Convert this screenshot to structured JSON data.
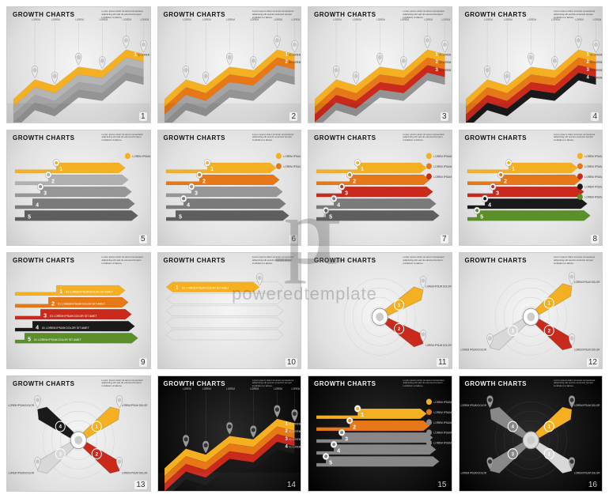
{
  "common": {
    "title": "GROWTH CHARTS",
    "lorem_block": "Lorem ipsum dolor sit amet consectetur adipiscing elit sed do eiusmod tempor incididunt ut labore.",
    "layer_text": "01 LOREM IPSUM DOLOR SIT AMET",
    "bullet_text": "LOREM IPSUM DOLOR"
  },
  "colors": {
    "yellow": "#f5b021",
    "orange": "#e77817",
    "red": "#c92a1c",
    "black_layer": "#1a1a1a",
    "green": "#5a8f29",
    "gray1": "#b0b0b0",
    "gray2": "#969696",
    "gray3": "#7a7a7a",
    "gray4": "#5e5e5e",
    "silver_light": "#d8d8d8",
    "silver_dark": "#888888"
  },
  "watermark": {
    "logo_text": "pt",
    "brand_text": "poweredtemplate"
  },
  "slides": [
    {
      "n": 1,
      "bg": "light",
      "type": "area",
      "layers": [
        "yellow"
      ],
      "markers": 6
    },
    {
      "n": 2,
      "bg": "light",
      "type": "area",
      "layers": [
        "yellow",
        "orange"
      ],
      "markers": 6
    },
    {
      "n": 3,
      "bg": "light",
      "type": "area",
      "layers": [
        "yellow",
        "orange",
        "red"
      ],
      "markers": 6
    },
    {
      "n": 4,
      "bg": "light",
      "type": "area",
      "layers": [
        "yellow",
        "orange",
        "red",
        "black_layer"
      ],
      "markers": 6
    },
    {
      "n": 5,
      "bg": "light",
      "type": "arrows",
      "rows": [
        "yellow",
        "gray1",
        "gray2",
        "gray3",
        "gray4"
      ],
      "bullets": 1
    },
    {
      "n": 6,
      "bg": "light",
      "type": "arrows",
      "rows": [
        "yellow",
        "orange",
        "gray2",
        "gray3",
        "gray4"
      ],
      "bullets": 2
    },
    {
      "n": 7,
      "bg": "light",
      "type": "arrows",
      "rows": [
        "yellow",
        "orange",
        "red",
        "gray3",
        "gray4"
      ],
      "bullets": 3
    },
    {
      "n": 8,
      "bg": "light",
      "type": "arrows",
      "rows": [
        "yellow",
        "orange",
        "red",
        "black_layer",
        "green"
      ],
      "bullets": 5
    },
    {
      "n": 9,
      "bg": "light",
      "type": "arrows_labeled",
      "rows": [
        "yellow",
        "orange",
        "red",
        "black_layer",
        "green"
      ]
    },
    {
      "n": 10,
      "bg": "light",
      "type": "hex_bg",
      "rows": [
        "yellow"
      ]
    },
    {
      "n": 11,
      "bg": "light",
      "type": "radial",
      "petals": [
        "yellow",
        "red"
      ],
      "count": 2
    },
    {
      "n": 12,
      "bg": "light",
      "type": "radial",
      "petals": [
        "yellow",
        "red",
        "silver_light"
      ],
      "count": 3
    },
    {
      "n": 13,
      "bg": "light",
      "type": "radial",
      "petals": [
        "yellow",
        "red",
        "silver_light",
        "black_layer"
      ],
      "count": 4
    },
    {
      "n": 14,
      "bg": "dark",
      "type": "area",
      "layers": [
        "yellow",
        "orange",
        "red",
        "black_layer"
      ],
      "markers": 6
    },
    {
      "n": 15,
      "bg": "dark",
      "type": "arrows",
      "rows": [
        "yellow",
        "orange",
        "silver_dark",
        "silver_dark",
        "silver_dark"
      ],
      "bullets": 5
    },
    {
      "n": 16,
      "bg": "dark",
      "type": "radial",
      "petals": [
        "yellow",
        "silver_light",
        "silver_dark",
        "silver_dark"
      ],
      "count": 4
    }
  ]
}
